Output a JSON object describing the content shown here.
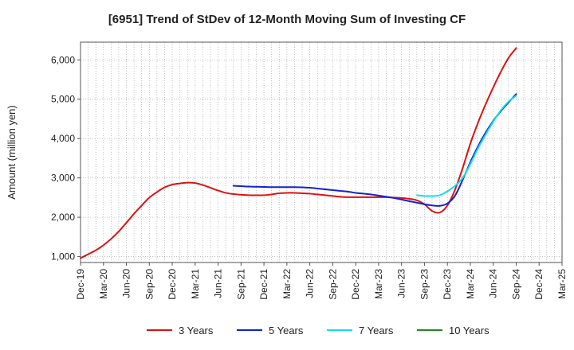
{
  "chart_data": {
    "type": "line",
    "title": "[6951]  Trend of StDev of 12-Month Moving Sum of Investing CF",
    "xlabel": "",
    "ylabel": "Amount (million yen)",
    "x_tick_labels": [
      "Dec-19",
      "Mar-20",
      "Jun-20",
      "Sep-20",
      "Dec-20",
      "Mar-21",
      "Jun-21",
      "Sep-21",
      "Dec-21",
      "Mar-22",
      "Jun-22",
      "Sep-22",
      "Dec-22",
      "Mar-23",
      "Jun-23",
      "Sep-23",
      "Dec-23",
      "Mar-24",
      "Jun-24",
      "Sep-24",
      "Dec-24",
      "Mar-25"
    ],
    "y_ticks": [
      1000,
      2000,
      3000,
      4000,
      5000,
      6000
    ],
    "y_tick_labels": [
      "1,000",
      "2,000",
      "3,000",
      "4,000",
      "5,000",
      "6,000"
    ],
    "ylim": [
      850,
      6450
    ],
    "grid": true,
    "legend_position": "bottom",
    "series": [
      {
        "name": "3 Years",
        "color": "#dd1111",
        "x": [
          "Dec-19",
          "Jan-20",
          "Feb-20",
          "Mar-20",
          "Apr-20",
          "May-20",
          "Jun-20",
          "Jul-20",
          "Aug-20",
          "Sep-20",
          "Oct-20",
          "Nov-20",
          "Dec-20",
          "Jan-21",
          "Feb-21",
          "Mar-21",
          "Apr-21",
          "May-21",
          "Jun-21",
          "Jul-21",
          "Aug-21",
          "Sep-21",
          "Oct-21",
          "Nov-21",
          "Dec-21",
          "Jan-22",
          "Feb-22",
          "Mar-22",
          "Apr-22",
          "May-22",
          "Jun-22",
          "Jul-22",
          "Aug-22",
          "Sep-22",
          "Oct-22",
          "Nov-22",
          "Dec-22",
          "Jan-23",
          "Feb-23",
          "Mar-23",
          "Apr-23",
          "May-23",
          "Jun-23",
          "Jul-23",
          "Aug-23",
          "Sep-23",
          "Oct-23",
          "Nov-23",
          "Dec-23",
          "Jan-24",
          "Feb-24",
          "Mar-24",
          "Apr-24",
          "May-24",
          "Jun-24",
          "Jul-24",
          "Aug-24",
          "Sep-24"
        ],
        "values": [
          960,
          1060,
          1160,
          1290,
          1450,
          1640,
          1860,
          2090,
          2300,
          2500,
          2640,
          2760,
          2830,
          2860,
          2880,
          2870,
          2820,
          2750,
          2680,
          2620,
          2590,
          2570,
          2560,
          2560,
          2560,
          2580,
          2610,
          2620,
          2620,
          2610,
          2600,
          2580,
          2560,
          2540,
          2520,
          2510,
          2510,
          2510,
          2510,
          2510,
          2510,
          2500,
          2490,
          2470,
          2430,
          2330,
          2160,
          2120,
          2300,
          2700,
          3250,
          3870,
          4400,
          4870,
          5300,
          5700,
          6050,
          6300
        ]
      },
      {
        "name": "5 Years",
        "color": "#1122cc",
        "x": [
          "Aug-21",
          "Sep-21",
          "Oct-21",
          "Nov-21",
          "Dec-21",
          "Jan-22",
          "Feb-22",
          "Mar-22",
          "Apr-22",
          "May-22",
          "Jun-22",
          "Jul-22",
          "Aug-22",
          "Sep-22",
          "Oct-22",
          "Nov-22",
          "Dec-22",
          "Jan-23",
          "Feb-23",
          "Mar-23",
          "Apr-23",
          "May-23",
          "Jun-23",
          "Jul-23",
          "Aug-23",
          "Sep-23",
          "Oct-23",
          "Nov-23",
          "Dec-23",
          "Jan-24",
          "Feb-24",
          "Mar-24",
          "Apr-24",
          "May-24",
          "Jun-24",
          "Jul-24",
          "Aug-24",
          "Sep-24"
        ],
        "values": [
          2800,
          2790,
          2780,
          2775,
          2770,
          2765,
          2765,
          2765,
          2765,
          2760,
          2750,
          2730,
          2710,
          2690,
          2670,
          2650,
          2620,
          2600,
          2580,
          2550,
          2520,
          2490,
          2450,
          2410,
          2370,
          2330,
          2300,
          2290,
          2350,
          2550,
          2950,
          3400,
          3800,
          4150,
          4450,
          4700,
          4920,
          5130
        ]
      },
      {
        "name": "7 Years",
        "color": "#11ddee",
        "x": [
          "Aug-23",
          "Sep-23",
          "Oct-23",
          "Nov-23",
          "Dec-23",
          "Jan-24",
          "Feb-24",
          "Mar-24",
          "Apr-24",
          "May-24",
          "Jun-24",
          "Jul-24",
          "Aug-24",
          "Sep-24"
        ],
        "values": [
          2560,
          2540,
          2540,
          2560,
          2660,
          2800,
          3000,
          3350,
          3750,
          4100,
          4430,
          4720,
          4940,
          5090
        ]
      },
      {
        "name": "10 Years",
        "color": "#228822",
        "x": [],
        "values": []
      }
    ]
  }
}
